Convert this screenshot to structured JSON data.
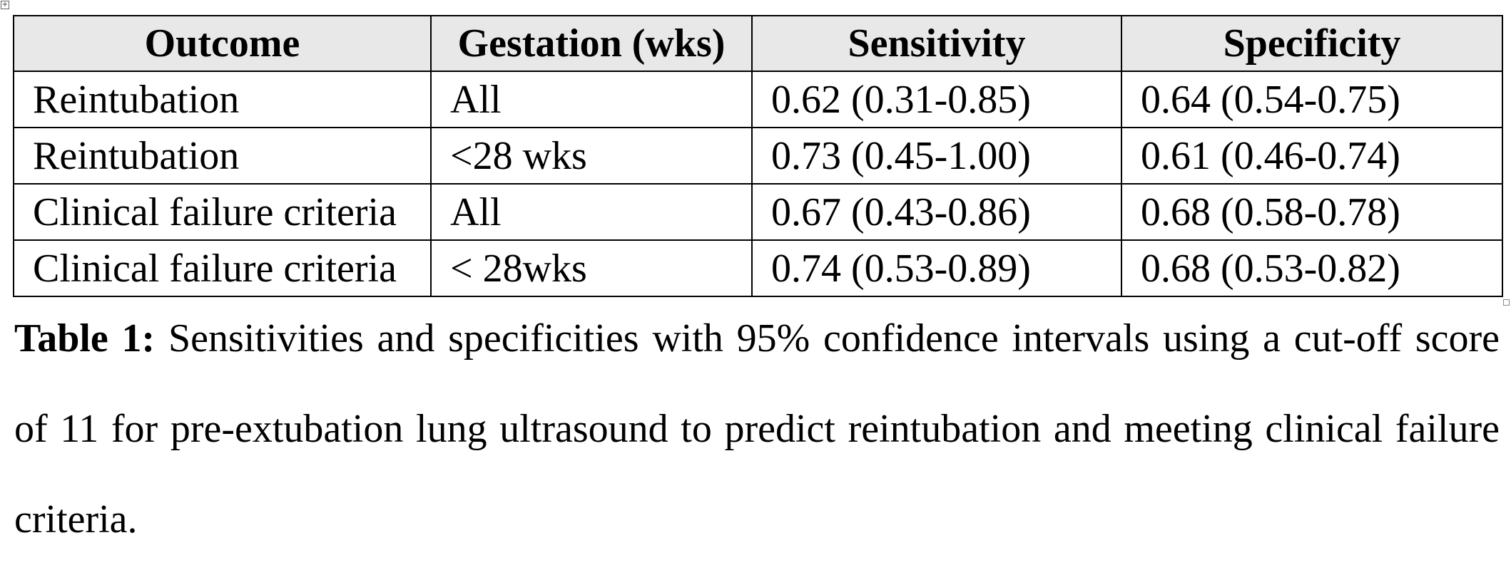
{
  "table": {
    "headers": [
      "Outcome",
      "Gestation (wks)",
      "Sensitivity",
      "Specificity"
    ],
    "rows": [
      [
        "Reintubation",
        "All",
        "0.62 (0.31-0.85)",
        "0.64 (0.54-0.75)"
      ],
      [
        "Reintubation",
        "<28 wks",
        "0.73 (0.45-1.00)",
        "0.61 (0.46-0.74)"
      ],
      [
        "Clinical failure criteria",
        "All",
        "0.67 (0.43-0.86)",
        "0.68 (0.58-0.78)"
      ],
      [
        "Clinical failure criteria",
        "< 28wks",
        "0.74 (0.53-0.89)",
        "0.68 (0.53-0.82)"
      ]
    ]
  },
  "caption": {
    "label": "Table 1:",
    "text": " Sensitivities and specificities with 95% confidence intervals using a cut-off score of 11 for pre-extubation lung ultrasound to predict reintubation and meeting clinical failure criteria."
  },
  "icons": {
    "anchor": "move-handle-icon",
    "resize": "resize-handle-icon"
  }
}
